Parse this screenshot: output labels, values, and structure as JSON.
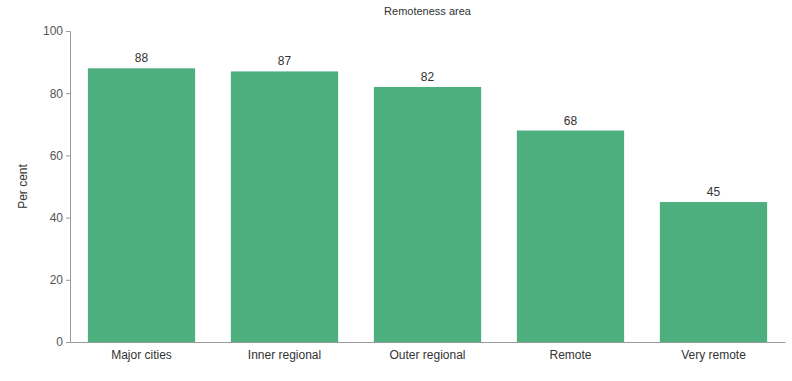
{
  "chart_data": {
    "type": "bar",
    "title": "Remoteness area",
    "y_label": "Per cent",
    "categories": [
      "Major cities",
      "Inner regional",
      "Outer regional",
      "Remote",
      "Very remote"
    ],
    "values": [
      88,
      87,
      82,
      68,
      45
    ],
    "color": "#4caf7d",
    "ylim": [
      0,
      100
    ],
    "yticks": [
      0,
      20,
      40,
      60,
      80,
      100
    ],
    "grid": false,
    "data_labels": true
  }
}
